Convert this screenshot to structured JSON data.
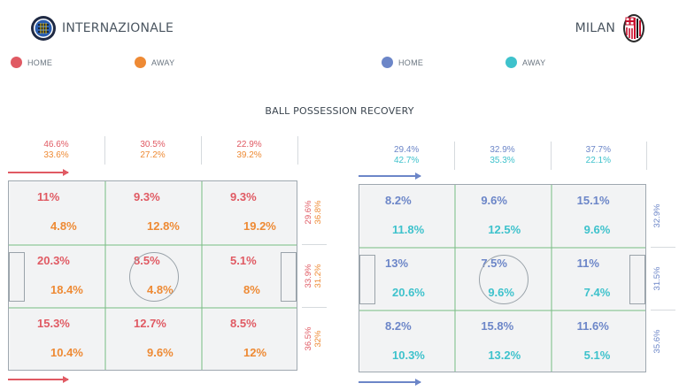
{
  "home_team": {
    "name": "INTERNAZIONALE",
    "logo_icon": "inter-crest-icon"
  },
  "away_team": {
    "name": "MILAN",
    "logo_icon": "milan-crest-icon"
  },
  "legends": {
    "left": [
      {
        "label": "HOME",
        "color": "#e05a63"
      },
      {
        "label": "AWAY",
        "color": "#ee8a34"
      }
    ],
    "right": [
      {
        "label": "HOME",
        "color": "#6c86c8"
      },
      {
        "label": "AWAY",
        "color": "#3ec2cc"
      }
    ]
  },
  "title": "BALL POSSESSION RECOVERY",
  "colors": {
    "inter_home": "#e05a63",
    "inter_away": "#ee8a34",
    "milan_home": "#6c86c8",
    "milan_away": "#3ec2cc",
    "pitch_line": "#7fc08a"
  },
  "chart_data": [
    {
      "type": "heatmap",
      "team": "INTERNAZIONALE",
      "series": [
        "HOME",
        "AWAY"
      ],
      "columns": {
        "home": [
          "46.6%",
          "30.5%",
          "22.9%"
        ],
        "away": [
          "33.6%",
          "27.2%",
          "39.2%"
        ]
      },
      "rows": {
        "home": [
          "29.6%",
          "33.9%",
          "36.5%"
        ],
        "away": [
          "36.8%",
          "31.2%",
          "32%"
        ]
      },
      "zones": [
        [
          {
            "home": "11%",
            "away": "4.8%"
          },
          {
            "home": "9.3%",
            "away": "12.8%"
          },
          {
            "home": "9.3%",
            "away": "19.2%"
          }
        ],
        [
          {
            "home": "20.3%",
            "away": "18.4%"
          },
          {
            "home": "8.5%",
            "away": "4.8%"
          },
          {
            "home": "5.1%",
            "away": "8%"
          }
        ],
        [
          {
            "home": "15.3%",
            "away": "10.4%"
          },
          {
            "home": "12.7%",
            "away": "9.6%"
          },
          {
            "home": "8.5%",
            "away": "12%"
          }
        ]
      ]
    },
    {
      "type": "heatmap",
      "team": "MILAN",
      "series": [
        "HOME",
        "AWAY"
      ],
      "columns": {
        "home": [
          "29.4%",
          "32.9%",
          "37.7%"
        ],
        "away": [
          "42.7%",
          "35.3%",
          "22.1%"
        ]
      },
      "rows": {
        "combined": [
          "32.9%",
          "31.5%",
          "35.6%"
        ]
      },
      "zones": [
        [
          {
            "home": "8.2%",
            "away": "11.8%"
          },
          {
            "home": "9.6%",
            "away": "12.5%"
          },
          {
            "home": "15.1%",
            "away": "9.6%"
          }
        ],
        [
          {
            "home": "13%",
            "away": "20.6%"
          },
          {
            "home": "7.5%",
            "away": "9.6%"
          },
          {
            "home": "11%",
            "away": "7.4%"
          }
        ],
        [
          {
            "home": "8.2%",
            "away": "10.3%"
          },
          {
            "home": "15.8%",
            "away": "13.2%"
          },
          {
            "home": "11.6%",
            "away": "5.1%"
          }
        ]
      ]
    }
  ]
}
